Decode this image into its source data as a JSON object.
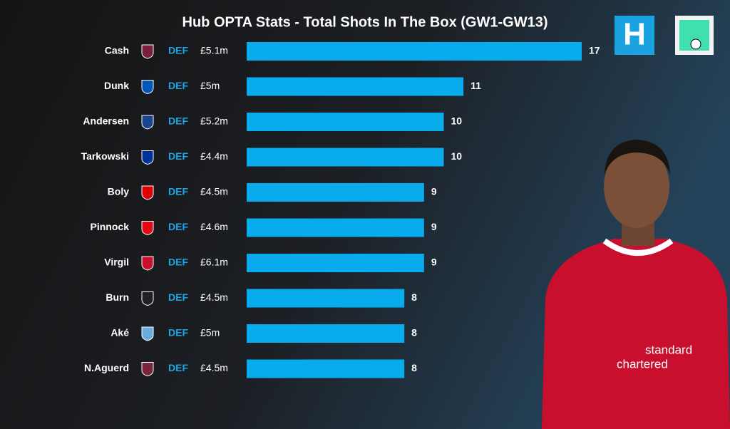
{
  "chart_data": {
    "type": "bar",
    "title": "Hub OPTA Stats - Total Shots In The Box (GW1-GW13)",
    "categories": [
      "Cash",
      "Dunk",
      "Andersen",
      "Tarkowski",
      "Boly",
      "Pinnock",
      "Virgil",
      "Burn",
      "Aké",
      "N.Aguerd"
    ],
    "positions": [
      "DEF",
      "DEF",
      "DEF",
      "DEF",
      "DEF",
      "DEF",
      "DEF",
      "DEF",
      "DEF",
      "DEF"
    ],
    "prices": [
      "£5.1m",
      "£5m",
      "£5.2m",
      "£4.4m",
      "£4.5m",
      "£4.6m",
      "£6.1m",
      "£4.5m",
      "£5m",
      "£4.5m"
    ],
    "values": [
      17,
      11,
      10,
      10,
      9,
      9,
      9,
      8,
      8,
      8
    ],
    "color": "#08acec",
    "badge_colors": [
      "#7a1f3d",
      "#0057b8",
      "#1b458f",
      "#003399",
      "#dd0000",
      "#e30613",
      "#c8102e",
      "#241f20",
      "#6cabdd",
      "#7a263a"
    ]
  }
}
